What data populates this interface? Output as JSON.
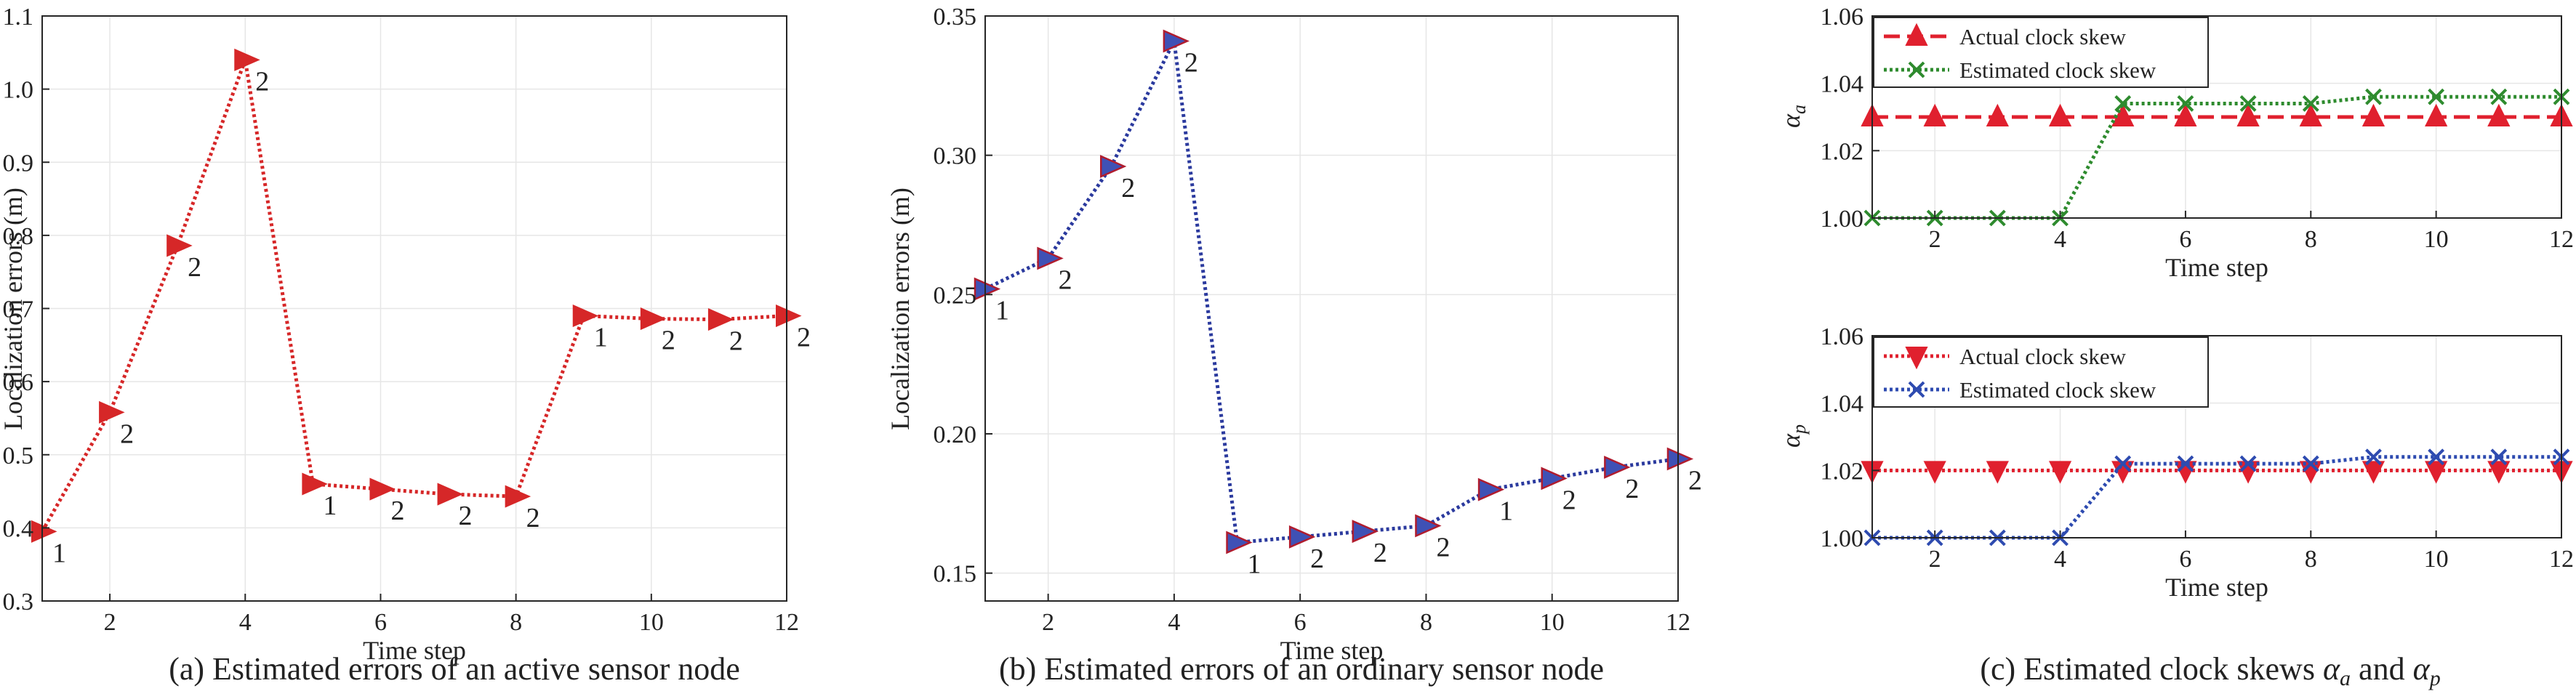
{
  "chart_data": [
    {
      "type": "line",
      "caption": "(a) Estimated errors of an active sensor node",
      "xlabel": "Time step",
      "ylabel": "Localization errors (m)",
      "xlim": [
        1,
        12
      ],
      "ylim": [
        0.3,
        1.1
      ],
      "xticks": [
        2,
        4,
        6,
        8,
        10,
        12
      ],
      "yticks": [
        0.3,
        0.4,
        0.5,
        0.6,
        0.7,
        0.8,
        0.9,
        1.0,
        1.1
      ],
      "ytick_labels": [
        "0.3",
        "0.4",
        "0.5",
        "0.6",
        "0.7",
        "0.8",
        "0.9",
        "1.0",
        "1.1"
      ],
      "grid": true,
      "series": [
        {
          "color": "#d62728",
          "marker": "triangle-right",
          "line": "dotted",
          "x": [
            1,
            2,
            3,
            4,
            5,
            6,
            7,
            8,
            9,
            10,
            11,
            12
          ],
          "y": [
            0.395,
            0.558,
            0.786,
            1.04,
            0.46,
            0.453,
            0.446,
            0.443,
            0.69,
            0.686,
            0.685,
            0.69
          ],
          "point_labels": [
            "1",
            "2",
            "2",
            "2",
            "1",
            "2",
            "2",
            "2",
            "1",
            "2",
            "2",
            "2"
          ]
        }
      ]
    },
    {
      "type": "line",
      "caption": "(b) Estimated errors of an ordinary sensor node",
      "xlabel": "Time step",
      "ylabel": "Localization errors (m)",
      "xlim": [
        1,
        12
      ],
      "ylim": [
        0.14,
        0.35
      ],
      "xticks": [
        2,
        4,
        6,
        8,
        10,
        12
      ],
      "yticks": [
        0.15,
        0.2,
        0.25,
        0.3,
        0.35
      ],
      "ytick_labels": [
        "0.15",
        "0.20",
        "0.25",
        "0.30",
        "0.35"
      ],
      "grid": true,
      "series": [
        {
          "color": "#2b3a9e",
          "marker_fill": "#3f51b5",
          "marker_edge": "#b01c2e",
          "marker": "triangle-right",
          "line": "dotted",
          "x": [
            1,
            2,
            3,
            4,
            5,
            6,
            7,
            8,
            9,
            10,
            11,
            12
          ],
          "y": [
            0.252,
            0.263,
            0.296,
            0.341,
            0.161,
            0.163,
            0.165,
            0.167,
            0.18,
            0.184,
            0.188,
            0.191
          ],
          "point_labels": [
            "1",
            "2",
            "2",
            "2",
            "1",
            "2",
            "2",
            "2",
            "1",
            "2",
            "2",
            "2"
          ]
        }
      ]
    },
    {
      "type": "line",
      "xlabel": "Time step",
      "ylabel_main": "α",
      "ylabel_sub": "a",
      "xlim": [
        1,
        12
      ],
      "ylim": [
        1.0,
        1.06
      ],
      "xticks": [
        2,
        4,
        6,
        8,
        10,
        12
      ],
      "yticks": [
        1.0,
        1.02,
        1.04,
        1.06
      ],
      "ytick_labels": [
        "1.00",
        "1.02",
        "1.04",
        "1.06"
      ],
      "grid": true,
      "legend": "top-left",
      "series": [
        {
          "name": "Actual clock skew",
          "color": "#e0202e",
          "marker": "triangle-up",
          "line": "dashed",
          "x": [
            1,
            2,
            3,
            4,
            5,
            6,
            7,
            8,
            9,
            10,
            11,
            12
          ],
          "y": [
            1.03,
            1.03,
            1.03,
            1.03,
            1.03,
            1.03,
            1.03,
            1.03,
            1.03,
            1.03,
            1.03,
            1.03
          ]
        },
        {
          "name": "Estimated clock skew",
          "color": "#2e8b2e",
          "marker": "x",
          "line": "dotted",
          "x": [
            1,
            2,
            3,
            4,
            5,
            6,
            7,
            8,
            9,
            10,
            11,
            12
          ],
          "y": [
            1.0,
            1.0,
            1.0,
            1.0,
            1.034,
            1.034,
            1.034,
            1.034,
            1.036,
            1.036,
            1.036,
            1.036
          ]
        }
      ]
    },
    {
      "type": "line",
      "xlabel": "Time step",
      "ylabel_main": "α",
      "ylabel_sub": "p",
      "xlim": [
        1,
        12
      ],
      "ylim": [
        1.0,
        1.06
      ],
      "xticks": [
        2,
        4,
        6,
        8,
        10,
        12
      ],
      "yticks": [
        1.0,
        1.02,
        1.04,
        1.06
      ],
      "ytick_labels": [
        "1.00",
        "1.02",
        "1.04",
        "1.06"
      ],
      "grid": true,
      "legend": "top-left",
      "series": [
        {
          "name": "Actual clock skew",
          "color": "#e0202e",
          "marker": "triangle-down",
          "line": "dotted",
          "x": [
            1,
            2,
            3,
            4,
            5,
            6,
            7,
            8,
            9,
            10,
            11,
            12
          ],
          "y": [
            1.02,
            1.02,
            1.02,
            1.02,
            1.02,
            1.02,
            1.02,
            1.02,
            1.02,
            1.02,
            1.02,
            1.02
          ]
        },
        {
          "name": "Estimated clock skew",
          "color": "#2e4bb0",
          "marker": "x",
          "line": "dotted",
          "x": [
            1,
            2,
            3,
            4,
            5,
            6,
            7,
            8,
            9,
            10,
            11,
            12
          ],
          "y": [
            1.0,
            1.0,
            1.0,
            1.0,
            1.022,
            1.022,
            1.022,
            1.022,
            1.024,
            1.024,
            1.024,
            1.024
          ]
        }
      ]
    }
  ],
  "caption_c": {
    "text": "(c) Estimated clock skews ",
    "sym1": "α",
    "sub1": "a",
    "mid": " and ",
    "sym2": "α",
    "sub2": "p"
  }
}
